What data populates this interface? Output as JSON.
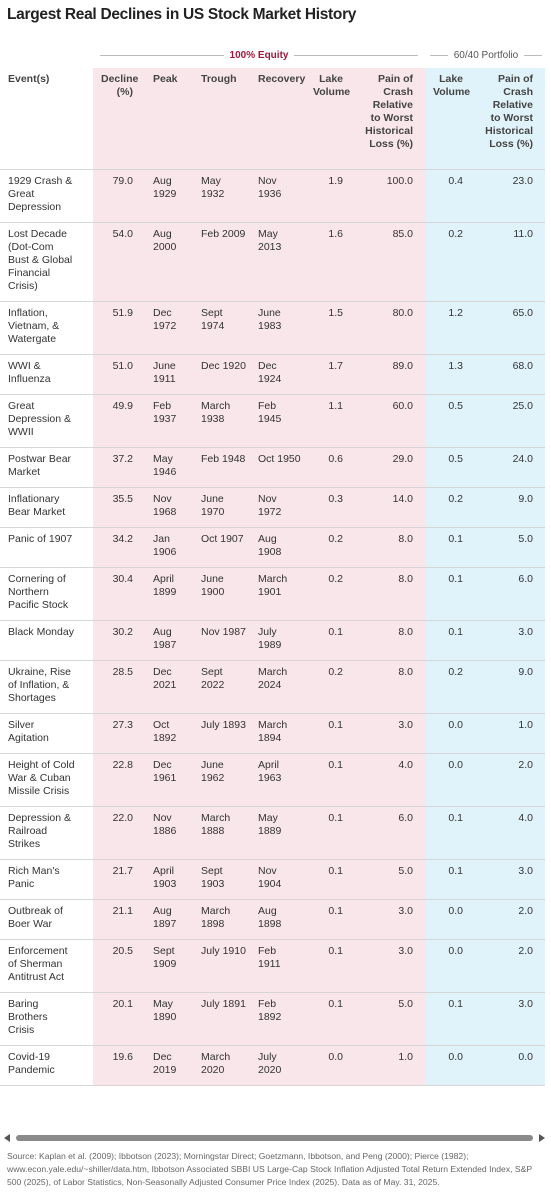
{
  "title": "Largest Real Declines in US Stock Market History",
  "groups": [
    "100% Equity",
    "60/40 Portfolio"
  ],
  "columns": [
    "Event(s)",
    "Decline (%)",
    "Peak",
    "Trough",
    "Recovery",
    "Lake Volume",
    "Pain of Crash Relative to Worst Historical Loss (%)",
    "Lake Volume",
    "Pain of Crash Relative to Worst Historical Loss (%)"
  ],
  "rows": [
    [
      "1929 Crash & Great Depression",
      "79.0",
      "Aug 1929",
      "May 1932",
      "Nov 1936",
      "1.9",
      "100.0",
      "0.4",
      "23.0"
    ],
    [
      "Lost Decade (Dot-Com Bust & Global Financial Crisis)",
      "54.0",
      "Aug 2000",
      "Feb 2009",
      "May 2013",
      "1.6",
      "85.0",
      "0.2",
      "11.0"
    ],
    [
      "Inflation, Vietnam, & Watergate",
      "51.9",
      "Dec 1972",
      "Sept 1974",
      "June 1983",
      "1.5",
      "80.0",
      "1.2",
      "65.0"
    ],
    [
      "WWI & Influenza",
      "51.0",
      "June 1911",
      "Dec 1920",
      "Dec 1924",
      "1.7",
      "89.0",
      "1.3",
      "68.0"
    ],
    [
      "Great Depression & WWII",
      "49.9",
      "Feb 1937",
      "March 1938",
      "Feb 1945",
      "1.1",
      "60.0",
      "0.5",
      "25.0"
    ],
    [
      "Postwar Bear Market",
      "37.2",
      "May 1946",
      "Feb 1948",
      "Oct 1950",
      "0.6",
      "29.0",
      "0.5",
      "24.0"
    ],
    [
      "Inflationary Bear Market",
      "35.5",
      "Nov 1968",
      "June 1970",
      "Nov 1972",
      "0.3",
      "14.0",
      "0.2",
      "9.0"
    ],
    [
      "Panic of 1907",
      "34.2",
      "Jan 1906",
      "Oct 1907",
      "Aug 1908",
      "0.2",
      "8.0",
      "0.1",
      "5.0"
    ],
    [
      "Cornering of Northern Pacific Stock",
      "30.4",
      "April 1899",
      "June 1900",
      "March 1901",
      "0.2",
      "8.0",
      "0.1",
      "6.0"
    ],
    [
      "Black Monday",
      "30.2",
      "Aug 1987",
      "Nov 1987",
      "July 1989",
      "0.1",
      "8.0",
      "0.1",
      "3.0"
    ],
    [
      "Ukraine, Rise of Inflation, & Shortages",
      "28.5",
      "Dec 2021",
      "Sept 2022",
      "March 2024",
      "0.2",
      "8.0",
      "0.2",
      "9.0"
    ],
    [
      "Silver Agitation",
      "27.3",
      "Oct 1892",
      "July 1893",
      "March 1894",
      "0.1",
      "3.0",
      "0.0",
      "1.0"
    ],
    [
      "Height of Cold War & Cuban Missile Crisis",
      "22.8",
      "Dec 1961",
      "June 1962",
      "April 1963",
      "0.1",
      "4.0",
      "0.0",
      "2.0"
    ],
    [
      "Depression & Railroad Strikes",
      "22.0",
      "Nov 1886",
      "March 1888",
      "May 1889",
      "0.1",
      "6.0",
      "0.1",
      "4.0"
    ],
    [
      "Rich Man's Panic",
      "21.7",
      "April 1903",
      "Sept 1903",
      "Nov 1904",
      "0.1",
      "5.0",
      "0.1",
      "3.0"
    ],
    [
      "Outbreak of Boer War",
      "21.1",
      "Aug 1897",
      "March 1898",
      "Aug 1898",
      "0.1",
      "3.0",
      "0.0",
      "2.0"
    ],
    [
      "Enforcement of Sherman Antitrust Act",
      "20.5",
      "Sept 1909",
      "July 1910",
      "Feb 1911",
      "0.1",
      "3.0",
      "0.0",
      "2.0"
    ],
    [
      "Baring Brothers Crisis",
      "20.1",
      "May 1890",
      "July 1891",
      "Feb 1892",
      "0.1",
      "5.0",
      "0.1",
      "3.0"
    ],
    [
      "Covid-19 Pandemic",
      "19.6",
      "Dec 2019",
      "March 2020",
      "July 2020",
      "0.0",
      "1.0",
      "0.0",
      "0.0"
    ]
  ],
  "source": "Source: Kaplan et al. (2009); Ibbotson (2023); Morningstar Direct; Goetzmann, Ibbotson, and Peng (2000); Pierce (1982); www.econ.yale.edu/~shiller/data.htm, Ibbotson Associated SBBI US Large-Cap Stock Inflation Adjusted Total Return Extended Index, S&P 500 (2025), of Labor Statistics, Non-Seasonally Adjusted Consumer Price Index (2025). Data as of May. 31, 2025."
}
